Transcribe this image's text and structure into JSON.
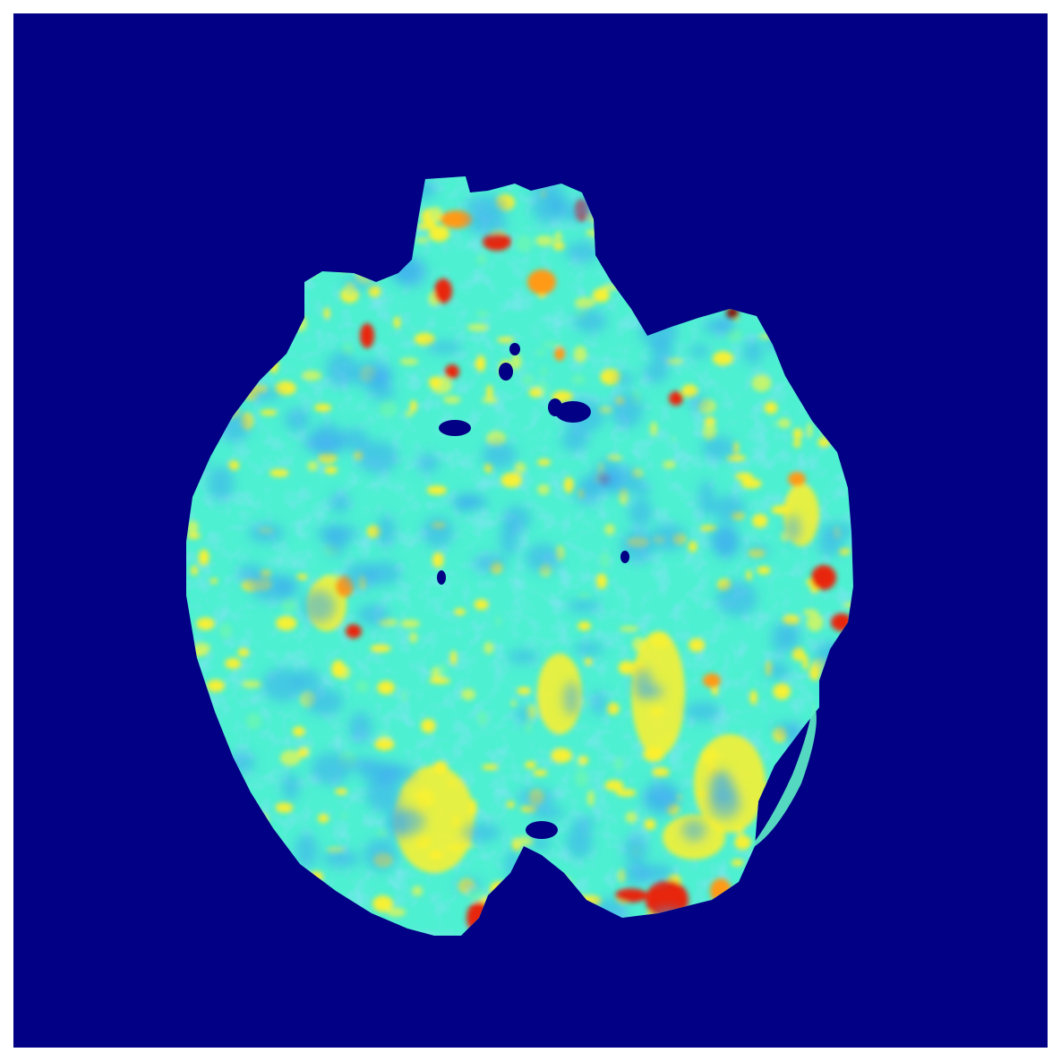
{
  "image": {
    "kind": "perfusion-map",
    "colormap": "jet",
    "colors": {
      "background": "#020084",
      "frame_border": "#ffffff",
      "tissue_base": "#4ef0d2",
      "low": "#3aaaf0",
      "mid_low": "#66f4b6",
      "mid": "#c8f46a",
      "high": "#fff02a",
      "higher": "#ff9a18",
      "highest": "#e82810",
      "max": "#8a1000",
      "void": "#020084"
    }
  }
}
